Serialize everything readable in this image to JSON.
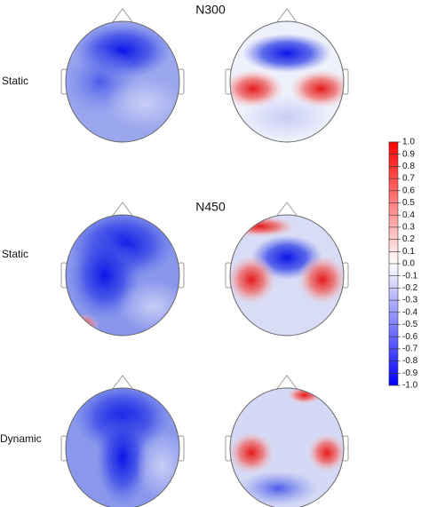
{
  "chart_data": {
    "type": "topomap",
    "titles": [
      "N300",
      "N450"
    ],
    "row_labels": [
      "Static",
      "Static",
      "Dynamic"
    ],
    "colorbar": {
      "clim": [
        -1,
        1
      ],
      "colors": [
        "#0000ff",
        "#ffffff",
        "#ff0000"
      ],
      "ticks": [
        {
          "value": 1,
          "label": "1.0"
        },
        {
          "value": 0.9,
          "label": "0.9"
        },
        {
          "value": 0.8,
          "label": "0.8"
        },
        {
          "value": 0.7,
          "label": "0.7"
        },
        {
          "value": 0.6,
          "label": "0.6"
        },
        {
          "value": 0.5,
          "label": "0.5"
        },
        {
          "value": 0.4,
          "label": "0.4"
        },
        {
          "value": 0.3,
          "label": "0.3"
        },
        {
          "value": 0.2,
          "label": "0.2"
        },
        {
          "value": 0.1,
          "label": "0.1"
        },
        {
          "value": 0,
          "label": "0.0"
        },
        {
          "value": -0.1,
          "label": "-0.1"
        },
        {
          "value": -0.2,
          "label": "-0.2"
        },
        {
          "value": -0.3,
          "label": "-0.3"
        },
        {
          "value": -0.4,
          "label": "-0.4"
        },
        {
          "value": -0.5,
          "label": "-0.5"
        },
        {
          "value": -0.6,
          "label": "-0.6"
        },
        {
          "value": -0.7,
          "label": "-0.7"
        },
        {
          "value": -0.8,
          "label": "-0.8"
        },
        {
          "value": -0.9,
          "label": "-0.9"
        },
        {
          "value": -1,
          "label": "-1.0"
        }
      ]
    }
  }
}
